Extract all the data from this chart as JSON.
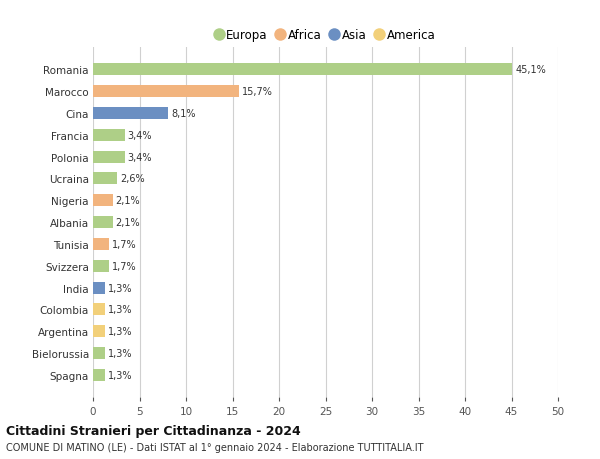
{
  "countries": [
    "Romania",
    "Marocco",
    "Cina",
    "Francia",
    "Polonia",
    "Ucraina",
    "Nigeria",
    "Albania",
    "Tunisia",
    "Svizzera",
    "India",
    "Colombia",
    "Argentina",
    "Bielorussia",
    "Spagna"
  ],
  "values": [
    45.1,
    15.7,
    8.1,
    3.4,
    3.4,
    2.6,
    2.1,
    2.1,
    1.7,
    1.7,
    1.3,
    1.3,
    1.3,
    1.3,
    1.3
  ],
  "labels": [
    "45,1%",
    "15,7%",
    "8,1%",
    "3,4%",
    "3,4%",
    "2,6%",
    "2,1%",
    "2,1%",
    "1,7%",
    "1,7%",
    "1,3%",
    "1,3%",
    "1,3%",
    "1,3%",
    "1,3%"
  ],
  "continent": [
    "Europa",
    "Africa",
    "Asia",
    "Europa",
    "Europa",
    "Europa",
    "Africa",
    "Europa",
    "Africa",
    "Europa",
    "Asia",
    "America",
    "America",
    "Europa",
    "Europa"
  ],
  "colors": {
    "Europa": "#aecf87",
    "Africa": "#f2b47e",
    "Asia": "#6b8fc2",
    "America": "#f2d07a"
  },
  "legend_order": [
    "Europa",
    "Africa",
    "Asia",
    "America"
  ],
  "title": "Cittadini Stranieri per Cittadinanza - 2024",
  "subtitle": "COMUNE DI MATINO (LE) - Dati ISTAT al 1° gennaio 2024 - Elaborazione TUTTITALIA.IT",
  "xlim": [
    0,
    50
  ],
  "xticks": [
    0,
    5,
    10,
    15,
    20,
    25,
    30,
    35,
    40,
    45,
    50
  ],
  "background_color": "#ffffff",
  "grid_color": "#d0d0d0"
}
